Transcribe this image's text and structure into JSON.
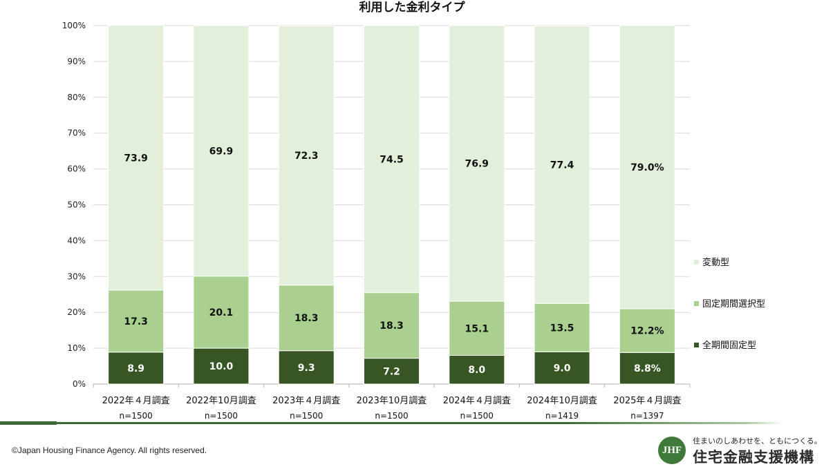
{
  "chart_data": {
    "type": "bar",
    "stacked": true,
    "title": "利用した金利タイプ",
    "categories": [
      "2022年４月調査",
      "2022年10月調査",
      "2023年４月調査",
      "2023年10月調査",
      "2024年４月調査",
      "2024年10月調査",
      "2025年４月調査"
    ],
    "sample_sizes": [
      "n=1500",
      "n=1500",
      "n=1500",
      "n=1500",
      "n=1500",
      "n=1419",
      "n=1397"
    ],
    "ylim": [
      0,
      100
    ],
    "yticks": [
      "0%",
      "10%",
      "20%",
      "30%",
      "40%",
      "50%",
      "60%",
      "70%",
      "80%",
      "90%",
      "100%"
    ],
    "grid": true,
    "legend_position": "right",
    "series": [
      {
        "name": "全期間固定型",
        "color": "#375623",
        "values": [
          8.9,
          10.0,
          9.3,
          7.2,
          8.0,
          9.0,
          8.8
        ],
        "labels": [
          "8.9",
          "10.0",
          "9.3",
          "7.2",
          "8.0",
          "9.0",
          "8.8%"
        ]
      },
      {
        "name": "固定期間選択型",
        "color": "#a9d08e",
        "values": [
          17.3,
          20.1,
          18.3,
          18.3,
          15.1,
          13.5,
          12.2
        ],
        "labels": [
          "17.3",
          "20.1",
          "18.3",
          "18.3",
          "15.1",
          "13.5",
          "12.2%"
        ]
      },
      {
        "name": "変動型",
        "color": "#e2efda",
        "values": [
          73.9,
          69.9,
          72.3,
          74.5,
          76.9,
          77.4,
          79.0
        ],
        "labels": [
          "73.9",
          "69.9",
          "72.3",
          "74.5",
          "76.9",
          "77.4",
          "79.0%"
        ]
      }
    ]
  },
  "footer": {
    "copyright": "©Japan Housing Finance Agency. All rights reserved.",
    "logo_mark": "JHF",
    "logo_tagline": "住まいのしあわせを、ともにつくる。",
    "logo_name": "住宅金融支援機構"
  }
}
